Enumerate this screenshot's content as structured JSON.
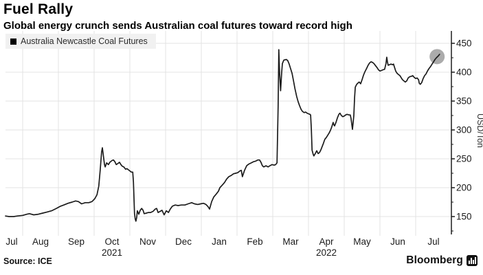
{
  "header": {
    "title": "Fuel Rally",
    "subtitle": "Global energy crunch sends Australian coal futures toward record high"
  },
  "legend": {
    "label": "Australia Newcastle Coal Futures",
    "marker_color": "#000000",
    "background": "#f1f1f1"
  },
  "footer": {
    "source": "Source: ICE",
    "brand": "Bloomberg"
  },
  "chart_data": {
    "type": "line",
    "title": "Fuel Rally",
    "ylabel": "USD/Ton",
    "xlabel": "",
    "ylim": [
      125,
      470
    ],
    "yticks": [
      150,
      200,
      250,
      300,
      350,
      400,
      450
    ],
    "yticks_minor": [
      125,
      175,
      225,
      275,
      325,
      375,
      425
    ],
    "grid": "on",
    "legend_position": "top-left",
    "x_unit": "fractional months since 2021-07-01",
    "x_tick_labels": [
      "Jul",
      "Aug",
      "Sep",
      "Oct",
      "Nov",
      "Dec",
      "Jan",
      "Feb",
      "Mar",
      "Apr",
      "May",
      "Jun",
      "Jul"
    ],
    "year_labels": [
      {
        "text": "2021",
        "month_index": 3
      },
      {
        "text": "2022",
        "month_index": 9
      }
    ],
    "line_color": "#1b1b1b",
    "grid_color": "#e3e3e3",
    "axis_color": "#1b1b1b",
    "endpoint_highlight": {
      "t": 12.6,
      "v": 427,
      "radius": 11,
      "color": "#9c9c9c",
      "opacity": 0.85
    },
    "series": [
      {
        "name": "Australia Newcastle Coal Futures",
        "points": [
          [
            0.52,
            151
          ],
          [
            0.62,
            150
          ],
          [
            0.75,
            150
          ],
          [
            0.85,
            151
          ],
          [
            1.0,
            152
          ],
          [
            1.12,
            154
          ],
          [
            1.19,
            155
          ],
          [
            1.31,
            153
          ],
          [
            1.44,
            154
          ],
          [
            1.56,
            156
          ],
          [
            1.69,
            158
          ],
          [
            1.81,
            160
          ],
          [
            1.94,
            164
          ],
          [
            2.06,
            168
          ],
          [
            2.15,
            170
          ],
          [
            2.27,
            173
          ],
          [
            2.38,
            175
          ],
          [
            2.48,
            177
          ],
          [
            2.56,
            176
          ],
          [
            2.65,
            172
          ],
          [
            2.75,
            174
          ],
          [
            2.85,
            174
          ],
          [
            2.94,
            176
          ],
          [
            3.02,
            181
          ],
          [
            3.08,
            188
          ],
          [
            3.13,
            203
          ],
          [
            3.17,
            230
          ],
          [
            3.21,
            262
          ],
          [
            3.23,
            269
          ],
          [
            3.26,
            255
          ],
          [
            3.29,
            240
          ],
          [
            3.31,
            236
          ],
          [
            3.35,
            243
          ],
          [
            3.4,
            240
          ],
          [
            3.44,
            244
          ],
          [
            3.5,
            247
          ],
          [
            3.54,
            248
          ],
          [
            3.58,
            245
          ],
          [
            3.62,
            240
          ],
          [
            3.67,
            242
          ],
          [
            3.71,
            244
          ],
          [
            3.75,
            240
          ],
          [
            3.79,
            237
          ],
          [
            3.83,
            236
          ],
          [
            3.88,
            232
          ],
          [
            3.92,
            233
          ],
          [
            3.96,
            231
          ],
          [
            4.0,
            229
          ],
          [
            4.04,
            227
          ],
          [
            4.08,
            227
          ],
          [
            4.1,
            210
          ],
          [
            4.13,
            155
          ],
          [
            4.15,
            146
          ],
          [
            4.17,
            142
          ],
          [
            4.19,
            148
          ],
          [
            4.21,
            160
          ],
          [
            4.25,
            154
          ],
          [
            4.29,
            161
          ],
          [
            4.33,
            164
          ],
          [
            4.37,
            161
          ],
          [
            4.4,
            155
          ],
          [
            4.46,
            156
          ],
          [
            4.52,
            157
          ],
          [
            4.58,
            157
          ],
          [
            4.65,
            159
          ],
          [
            4.71,
            163
          ],
          [
            4.75,
            164
          ],
          [
            4.79,
            157
          ],
          [
            4.85,
            159
          ],
          [
            4.9,
            161
          ],
          [
            4.96,
            153
          ],
          [
            5.02,
            160
          ],
          [
            5.08,
            157
          ],
          [
            5.13,
            163
          ],
          [
            5.19,
            168
          ],
          [
            5.27,
            170
          ],
          [
            5.35,
            169
          ],
          [
            5.44,
            170
          ],
          [
            5.54,
            170
          ],
          [
            5.63,
            172
          ],
          [
            5.73,
            174
          ],
          [
            5.81,
            172
          ],
          [
            5.9,
            171
          ],
          [
            5.98,
            172
          ],
          [
            6.06,
            173
          ],
          [
            6.13,
            171
          ],
          [
            6.19,
            167
          ],
          [
            6.23,
            163
          ],
          [
            6.29,
            176
          ],
          [
            6.35,
            184
          ],
          [
            6.42,
            189
          ],
          [
            6.48,
            194
          ],
          [
            6.52,
            200
          ],
          [
            6.58,
            204
          ],
          [
            6.65,
            209
          ],
          [
            6.71,
            215
          ],
          [
            6.77,
            219
          ],
          [
            6.83,
            221
          ],
          [
            6.9,
            224
          ],
          [
            6.96,
            225
          ],
          [
            7.02,
            226
          ],
          [
            7.08,
            229
          ],
          [
            7.12,
            230
          ],
          [
            7.15,
            219
          ],
          [
            7.21,
            230
          ],
          [
            7.27,
            238
          ],
          [
            7.33,
            241
          ],
          [
            7.4,
            243
          ],
          [
            7.46,
            245
          ],
          [
            7.52,
            246
          ],
          [
            7.58,
            248
          ],
          [
            7.63,
            248
          ],
          [
            7.67,
            244
          ],
          [
            7.71,
            238
          ],
          [
            7.75,
            236
          ],
          [
            7.81,
            238
          ],
          [
            7.87,
            236
          ],
          [
            7.92,
            238
          ],
          [
            7.98,
            240
          ],
          [
            8.04,
            239
          ],
          [
            8.08,
            240
          ],
          [
            8.12,
            243
          ],
          [
            8.15,
            340
          ],
          [
            8.17,
            439
          ],
          [
            8.19,
            400
          ],
          [
            8.22,
            368
          ],
          [
            8.25,
            400
          ],
          [
            8.27,
            415
          ],
          [
            8.31,
            421
          ],
          [
            8.38,
            422
          ],
          [
            8.42,
            420
          ],
          [
            8.46,
            414
          ],
          [
            8.5,
            406
          ],
          [
            8.54,
            398
          ],
          [
            8.58,
            385
          ],
          [
            8.62,
            372
          ],
          [
            8.67,
            358
          ],
          [
            8.71,
            349
          ],
          [
            8.75,
            342
          ],
          [
            8.79,
            336
          ],
          [
            8.83,
            332
          ],
          [
            8.88,
            330
          ],
          [
            8.92,
            331
          ],
          [
            8.96,
            329
          ],
          [
            9.0,
            328
          ],
          [
            9.04,
            327
          ],
          [
            9.06,
            326
          ],
          [
            9.08,
            300
          ],
          [
            9.1,
            265
          ],
          [
            9.13,
            258
          ],
          [
            9.15,
            255
          ],
          [
            9.19,
            259
          ],
          [
            9.23,
            264
          ],
          [
            9.27,
            259
          ],
          [
            9.31,
            261
          ],
          [
            9.35,
            266
          ],
          [
            9.38,
            271
          ],
          [
            9.42,
            277
          ],
          [
            9.44,
            281
          ],
          [
            9.46,
            284
          ],
          [
            9.5,
            287
          ],
          [
            9.54,
            291
          ],
          [
            9.58,
            295
          ],
          [
            9.62,
            300
          ],
          [
            9.65,
            305
          ],
          [
            9.69,
            313
          ],
          [
            9.71,
            309
          ],
          [
            9.73,
            307
          ],
          [
            9.77,
            313
          ],
          [
            9.81,
            321
          ],
          [
            9.85,
            327
          ],
          [
            9.88,
            329
          ],
          [
            9.92,
            325
          ],
          [
            9.96,
            323
          ],
          [
            10.0,
            324
          ],
          [
            10.04,
            326
          ],
          [
            10.08,
            327
          ],
          [
            10.13,
            326
          ],
          [
            10.17,
            326
          ],
          [
            10.19,
            320
          ],
          [
            10.23,
            301
          ],
          [
            10.27,
            325
          ],
          [
            10.29,
            356
          ],
          [
            10.31,
            374
          ],
          [
            10.35,
            379
          ],
          [
            10.38,
            381
          ],
          [
            10.42,
            383
          ],
          [
            10.46,
            380
          ],
          [
            10.5,
            387
          ],
          [
            10.54,
            395
          ],
          [
            10.58,
            401
          ],
          [
            10.63,
            407
          ],
          [
            10.67,
            412
          ],
          [
            10.71,
            416
          ],
          [
            10.75,
            418
          ],
          [
            10.79,
            417
          ],
          [
            10.83,
            415
          ],
          [
            10.88,
            411
          ],
          [
            10.92,
            408
          ],
          [
            10.96,
            404
          ],
          [
            11.0,
            402
          ],
          [
            11.04,
            403
          ],
          [
            11.08,
            404
          ],
          [
            11.13,
            405
          ],
          [
            11.17,
            415
          ],
          [
            11.19,
            426
          ],
          [
            11.21,
            418
          ],
          [
            11.23,
            412
          ],
          [
            11.27,
            413
          ],
          [
            11.31,
            414
          ],
          [
            11.35,
            413
          ],
          [
            11.38,
            414
          ],
          [
            11.4,
            410
          ],
          [
            11.44,
            402
          ],
          [
            11.48,
            398
          ],
          [
            11.52,
            396
          ],
          [
            11.56,
            394
          ],
          [
            11.6,
            390
          ],
          [
            11.63,
            387
          ],
          [
            11.67,
            385
          ],
          [
            11.71,
            383
          ],
          [
            11.75,
            385
          ],
          [
            11.79,
            390
          ],
          [
            11.83,
            392
          ],
          [
            11.88,
            393
          ],
          [
            11.92,
            394
          ],
          [
            11.96,
            391
          ],
          [
            12.0,
            389
          ],
          [
            12.04,
            390
          ],
          [
            12.08,
            387
          ],
          [
            12.1,
            381
          ],
          [
            12.13,
            379
          ],
          [
            12.17,
            382
          ],
          [
            12.21,
            389
          ],
          [
            12.25,
            394
          ],
          [
            12.29,
            397
          ],
          [
            12.33,
            402
          ],
          [
            12.37,
            406
          ],
          [
            12.42,
            410
          ],
          [
            12.46,
            414
          ],
          [
            12.5,
            418
          ],
          [
            12.54,
            422
          ],
          [
            12.58,
            425
          ],
          [
            12.63,
            428
          ],
          [
            12.67,
            431
          ]
        ]
      }
    ]
  }
}
